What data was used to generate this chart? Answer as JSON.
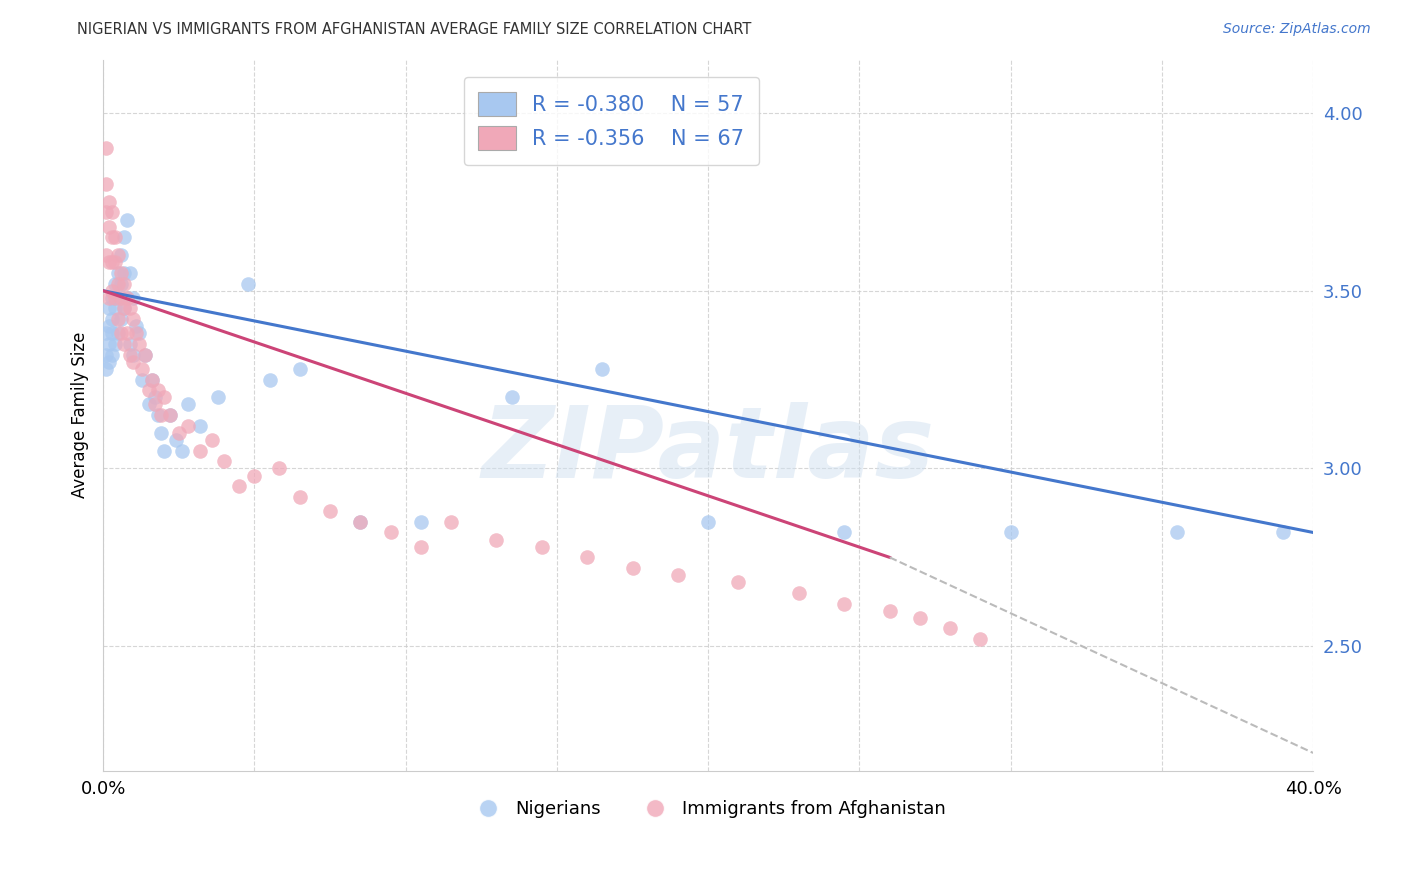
{
  "title": "NIGERIAN VS IMMIGRANTS FROM AFGHANISTAN AVERAGE FAMILY SIZE CORRELATION CHART",
  "source": "Source: ZipAtlas.com",
  "ylabel": "Average Family Size",
  "yticks": [
    2.5,
    3.0,
    3.5,
    4.0
  ],
  "xlim": [
    0.0,
    0.4
  ],
  "ylim": [
    2.15,
    4.15
  ],
  "blue_R": "-0.380",
  "blue_N": "57",
  "pink_R": "-0.356",
  "pink_N": "67",
  "blue_color": "#a8c8f0",
  "pink_color": "#f0a8b8",
  "blue_line_color": "#4477cc",
  "pink_line_color": "#cc4477",
  "dashed_line_color": "#bbbbbb",
  "legend_label_blue": "Nigerians",
  "legend_label_pink": "Immigrants from Afghanistan",
  "blue_scatter_x": [
    0.001,
    0.001,
    0.001,
    0.002,
    0.002,
    0.002,
    0.002,
    0.003,
    0.003,
    0.003,
    0.003,
    0.004,
    0.004,
    0.004,
    0.005,
    0.005,
    0.005,
    0.006,
    0.006,
    0.006,
    0.007,
    0.007,
    0.007,
    0.008,
    0.008,
    0.009,
    0.009,
    0.01,
    0.01,
    0.011,
    0.012,
    0.013,
    0.014,
    0.015,
    0.016,
    0.017,
    0.018,
    0.019,
    0.02,
    0.022,
    0.024,
    0.026,
    0.028,
    0.032,
    0.038,
    0.048,
    0.055,
    0.065,
    0.085,
    0.105,
    0.135,
    0.165,
    0.2,
    0.245,
    0.3,
    0.355,
    0.39
  ],
  "blue_scatter_y": [
    3.38,
    3.32,
    3.28,
    3.45,
    3.4,
    3.35,
    3.3,
    3.48,
    3.42,
    3.38,
    3.32,
    3.52,
    3.45,
    3.35,
    3.55,
    3.48,
    3.38,
    3.6,
    3.52,
    3.42,
    3.65,
    3.55,
    3.45,
    3.7,
    3.48,
    3.55,
    3.35,
    3.48,
    3.32,
    3.4,
    3.38,
    3.25,
    3.32,
    3.18,
    3.25,
    3.2,
    3.15,
    3.1,
    3.05,
    3.15,
    3.08,
    3.05,
    3.18,
    3.12,
    3.2,
    3.52,
    3.25,
    3.28,
    2.85,
    2.85,
    3.2,
    3.28,
    2.85,
    2.82,
    2.82,
    2.82,
    2.82
  ],
  "pink_scatter_x": [
    0.001,
    0.001,
    0.001,
    0.001,
    0.002,
    0.002,
    0.002,
    0.002,
    0.003,
    0.003,
    0.003,
    0.003,
    0.004,
    0.004,
    0.004,
    0.005,
    0.005,
    0.005,
    0.006,
    0.006,
    0.006,
    0.007,
    0.007,
    0.007,
    0.008,
    0.008,
    0.009,
    0.009,
    0.01,
    0.01,
    0.011,
    0.012,
    0.013,
    0.014,
    0.015,
    0.016,
    0.017,
    0.018,
    0.019,
    0.02,
    0.022,
    0.025,
    0.028,
    0.032,
    0.036,
    0.04,
    0.045,
    0.05,
    0.058,
    0.065,
    0.075,
    0.085,
    0.095,
    0.105,
    0.115,
    0.13,
    0.145,
    0.16,
    0.175,
    0.19,
    0.21,
    0.23,
    0.245,
    0.26,
    0.27,
    0.28,
    0.29
  ],
  "pink_scatter_y": [
    3.6,
    3.72,
    3.8,
    3.9,
    3.75,
    3.68,
    3.58,
    3.48,
    3.72,
    3.65,
    3.58,
    3.5,
    3.65,
    3.58,
    3.48,
    3.6,
    3.52,
    3.42,
    3.55,
    3.48,
    3.38,
    3.52,
    3.45,
    3.35,
    3.48,
    3.38,
    3.45,
    3.32,
    3.42,
    3.3,
    3.38,
    3.35,
    3.28,
    3.32,
    3.22,
    3.25,
    3.18,
    3.22,
    3.15,
    3.2,
    3.15,
    3.1,
    3.12,
    3.05,
    3.08,
    3.02,
    2.95,
    2.98,
    3.0,
    2.92,
    2.88,
    2.85,
    2.82,
    2.78,
    2.85,
    2.8,
    2.78,
    2.75,
    2.72,
    2.7,
    2.68,
    2.65,
    2.62,
    2.6,
    2.58,
    2.55,
    2.52
  ],
  "blue_trend_x": [
    0.0,
    0.4
  ],
  "blue_trend_y": [
    3.5,
    2.82
  ],
  "pink_trend_x": [
    0.0,
    0.26
  ],
  "pink_trend_y": [
    3.5,
    2.75
  ],
  "dash_trend_x": [
    0.26,
    0.4
  ],
  "dash_trend_y": [
    2.75,
    2.2
  ],
  "background_color": "#ffffff",
  "grid_color": "#cccccc",
  "watermark_text": "ZIPatlas",
  "watermark_color": "#d0e0f0",
  "accent_color": "#4477cc"
}
